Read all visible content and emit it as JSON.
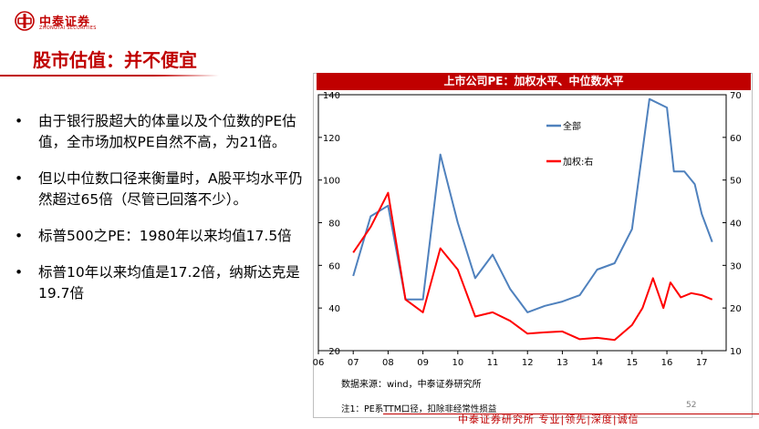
{
  "header": {
    "logo_cn": "中泰证券",
    "logo_en": "ZHONGTAI SECURITIES",
    "title": "股市估值：并不便宜"
  },
  "bullets": [
    {
      "marker": "•",
      "text": "由于银行股超大的体量以及个位数的PE估值，全市场加权PE自然不高，为21倍。"
    },
    {
      "marker": "•",
      "text": "但以中位数口径来衡量时，A股平均水平仍然超过65倍（尽管已回落不少）。"
    },
    {
      "marker": "•",
      "text": "标普500之PE：1980年以来均值17.5倍"
    },
    {
      "marker": "•",
      "text": "标普10年以来均值是17.2倍，纳斯达克是19.7倍"
    }
  ],
  "chart_data": {
    "type": "line",
    "title": "上市公司PE：加权水平、中位数水平",
    "xlim": [
      6,
      17.7
    ],
    "x_ticks": [
      6,
      7,
      8,
      9,
      10,
      11,
      12,
      13,
      14,
      15,
      16,
      17
    ],
    "x_tick_labels": [
      "06",
      "07",
      "08",
      "09",
      "10",
      "11",
      "12",
      "13",
      "14",
      "15",
      "16",
      "17"
    ],
    "y_left": {
      "min": 20,
      "max": 140,
      "ticks": [
        20,
        40,
        60,
        80,
        100,
        120,
        140
      ],
      "tick_labels": [
        "20",
        "40",
        "60",
        "80",
        "100",
        "120",
        "140"
      ]
    },
    "y_right": {
      "min": 10,
      "max": 70,
      "ticks": [
        10,
        20,
        30,
        40,
        50,
        60,
        70
      ],
      "tick_labels": [
        "10",
        "20",
        "30",
        "40",
        "50",
        "60",
        "70"
      ]
    },
    "grid": false,
    "legend_position": "inside-top-left",
    "series": [
      {
        "name": "全部",
        "axis": "left",
        "color": "#4f81bd",
        "x": [
          7.0,
          7.5,
          8.0,
          8.5,
          9.0,
          9.5,
          10.0,
          10.5,
          11.0,
          11.5,
          12.0,
          12.5,
          13.0,
          13.5,
          14.0,
          14.5,
          15.0,
          15.5,
          16.0,
          16.2,
          16.5,
          16.8,
          17.0,
          17.3
        ],
        "values": [
          55,
          83,
          88,
          44,
          44,
          112,
          80,
          54,
          65,
          49,
          38,
          41,
          43,
          46,
          58,
          61,
          77,
          138,
          134,
          104,
          104,
          98,
          84,
          71
        ]
      },
      {
        "name": "加权:右",
        "axis": "right",
        "color": "#ff0000",
        "x": [
          7.0,
          7.5,
          8.0,
          8.5,
          9.0,
          9.5,
          10.0,
          10.5,
          11.0,
          11.5,
          12.0,
          12.5,
          13.0,
          13.5,
          14.0,
          14.5,
          15.0,
          15.3,
          15.6,
          15.9,
          16.1,
          16.4,
          16.7,
          17.0,
          17.3
        ],
        "values": [
          33,
          39,
          47,
          22,
          19,
          34,
          29,
          18,
          19,
          17,
          14,
          14.3,
          14.5,
          12.7,
          13,
          12.5,
          16,
          20,
          27,
          20,
          26,
          22.5,
          23.5,
          23,
          22
        ]
      }
    ]
  },
  "source": "数据来源：wind，中泰证券研究所",
  "note": "注1：PE系TTM口径，扣除非经常性损益",
  "page_number": "52",
  "footer": "中泰证券研究所 专业|领先|深度|诚信",
  "colors": {
    "brand_red": "#c00000",
    "axis": "#000000"
  }
}
